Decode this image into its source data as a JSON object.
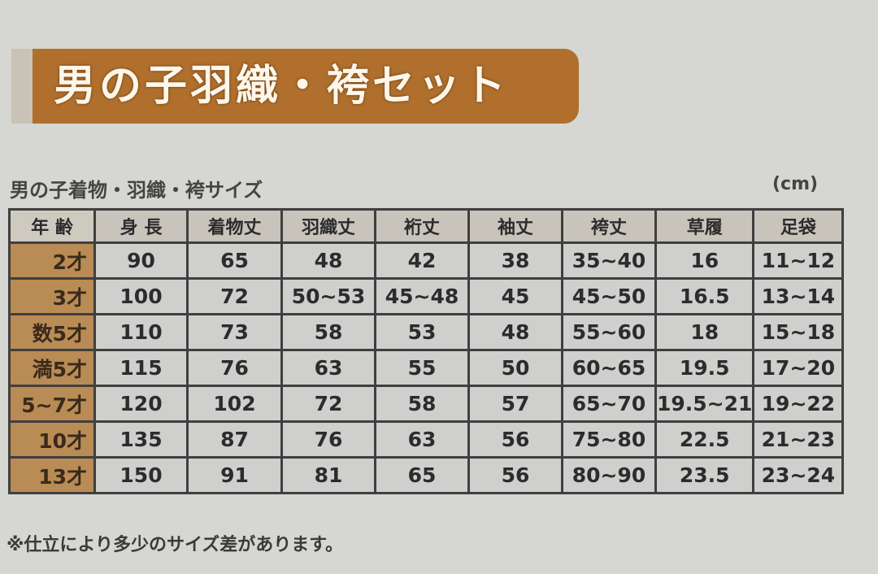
{
  "title": "男の子羽織・袴セット",
  "subtitle": "男の子着物・羽織・袴サイズ",
  "unit": "(cm)",
  "table": {
    "headers": [
      "年 齢",
      "身 長",
      "着物丈",
      "羽織丈",
      "裄丈",
      "袖丈",
      "袴丈",
      "草履",
      "足袋"
    ],
    "rows": [
      [
        "2才",
        "90",
        "65",
        "48",
        "42",
        "38",
        "35~40",
        "16",
        "11~12"
      ],
      [
        "3才",
        "100",
        "72",
        "50~53",
        "45~48",
        "45",
        "45~50",
        "16.5",
        "13~14"
      ],
      [
        "数5才",
        "110",
        "73",
        "58",
        "53",
        "48",
        "55~60",
        "18",
        "15~18"
      ],
      [
        "満5才",
        "115",
        "76",
        "63",
        "55",
        "50",
        "60~65",
        "19.5",
        "17~20"
      ],
      [
        "5~7才",
        "120",
        "102",
        "72",
        "58",
        "57",
        "65~70",
        "19.5~21",
        "19~22"
      ],
      [
        "10才",
        "135",
        "87",
        "76",
        "63",
        "56",
        "75~80",
        "22.5",
        "21~23"
      ],
      [
        "13才",
        "150",
        "91",
        "81",
        "65",
        "56",
        "80~90",
        "23.5",
        "23~24"
      ]
    ]
  },
  "note": "※仕立により多少のサイズ差があります。",
  "colors": {
    "banner": "#b06f2c",
    "age_cell": "#b98b55",
    "cell": "#cfcfcd"
  }
}
